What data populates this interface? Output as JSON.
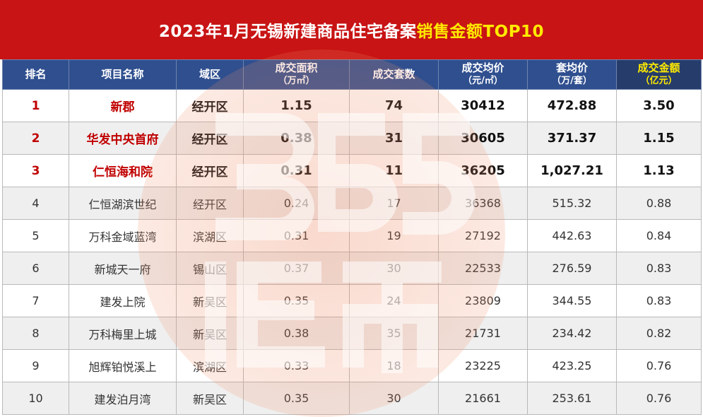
{
  "title": {
    "main": "2023年1月无锡新建商品住宅备案",
    "highlight": "销售金额TOP10"
  },
  "colors": {
    "title_bg": "#c81414",
    "header_bg": "#2f4f8f",
    "highlight": "#ffea00",
    "top3_text": "#c00000"
  },
  "watermark": {
    "icon": "365-taofang-logo-watermark"
  },
  "headers": {
    "rank": "排名",
    "name": "项目名称",
    "district": "域区",
    "area": "成交面积",
    "area_unit": "（万㎡）",
    "units": "成交套数",
    "price": "成交均价",
    "price_unit": "（元/㎡）",
    "avg": "套均价",
    "avg_unit": "（万/套）",
    "amount": "成交金额",
    "amount_unit": "（亿元）"
  },
  "rows": [
    {
      "rank": "1",
      "name": "新郡",
      "district": "经开区",
      "area": "1.15",
      "units": "74",
      "price": "30412",
      "avg": "472.88",
      "amount": "3.50"
    },
    {
      "rank": "2",
      "name": "华发中央首府",
      "district": "经开区",
      "area": "0.38",
      "units": "31",
      "price": "30605",
      "avg": "371.37",
      "amount": "1.15"
    },
    {
      "rank": "3",
      "name": "仁恒海和院",
      "district": "经开区",
      "area": "0.31",
      "units": "11",
      "price": "36205",
      "avg": "1,027.21",
      "amount": "1.13"
    },
    {
      "rank": "4",
      "name": "仁恒湖滨世纪",
      "district": "经开区",
      "area": "0.24",
      "units": "17",
      "price": "36368",
      "avg": "515.32",
      "amount": "0.88"
    },
    {
      "rank": "5",
      "name": "万科金域蓝湾",
      "district": "滨湖区",
      "area": "0.31",
      "units": "19",
      "price": "27192",
      "avg": "442.63",
      "amount": "0.84"
    },
    {
      "rank": "6",
      "name": "新城天一府",
      "district": "锡山区",
      "area": "0.37",
      "units": "30",
      "price": "22533",
      "avg": "276.59",
      "amount": "0.83"
    },
    {
      "rank": "7",
      "name": "建发上院",
      "district": "新吴区",
      "area": "0.35",
      "units": "24",
      "price": "23809",
      "avg": "344.55",
      "amount": "0.83"
    },
    {
      "rank": "8",
      "name": "万科梅里上城",
      "district": "新吴区",
      "area": "0.38",
      "units": "35",
      "price": "21731",
      "avg": "234.42",
      "amount": "0.82"
    },
    {
      "rank": "9",
      "name": "旭辉铂悦溪上",
      "district": "滨湖区",
      "area": "0.33",
      "units": "18",
      "price": "23225",
      "avg": "423.25",
      "amount": "0.76"
    },
    {
      "rank": "10",
      "name": "建发泊月湾",
      "district": "新吴区",
      "area": "0.35",
      "units": "30",
      "price": "21661",
      "avg": "253.61",
      "amount": "0.76"
    }
  ]
}
